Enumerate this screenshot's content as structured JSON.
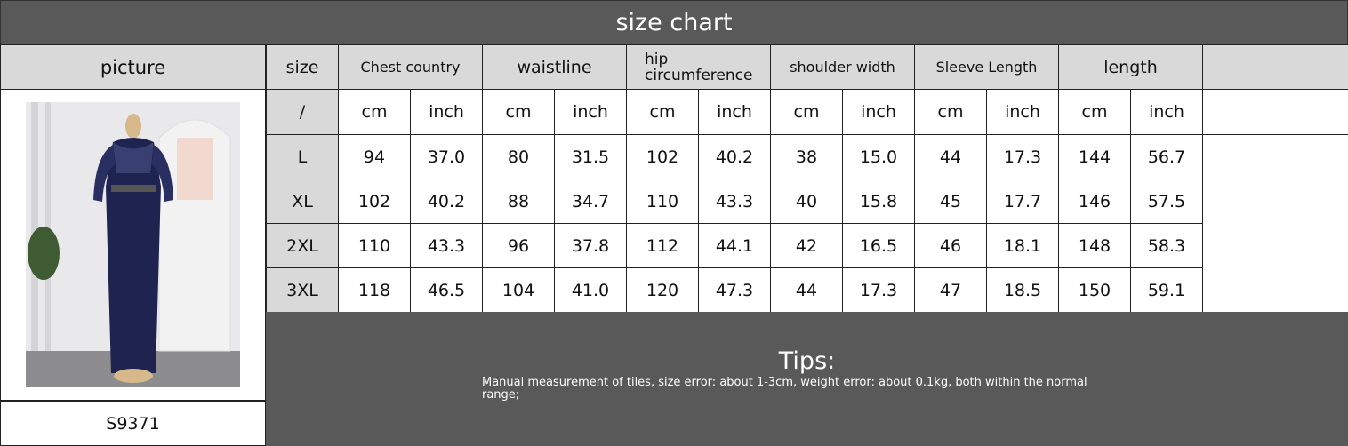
{
  "title": "size chart",
  "picture_header": "picture",
  "model_code": "S9371",
  "headers": [
    "size",
    "Chest country",
    "waistline",
    "hip circumference",
    "shoulder width",
    "Sleeve Length",
    "length"
  ],
  "unit_row": {
    "size": "/",
    "units": [
      "cm",
      "inch"
    ]
  },
  "rows": [
    {
      "size": "L",
      "values": [
        "94",
        "37.0",
        "80",
        "31.5",
        "102",
        "40.2",
        "38",
        "15.0",
        "44",
        "17.3",
        "144",
        "56.7"
      ]
    },
    {
      "size": "XL",
      "values": [
        "102",
        "40.2",
        "88",
        "34.7",
        "110",
        "43.3",
        "40",
        "15.8",
        "45",
        "17.7",
        "146",
        "57.5"
      ]
    },
    {
      "size": "2XL",
      "values": [
        "110",
        "43.3",
        "96",
        "37.8",
        "112",
        "44.1",
        "42",
        "16.5",
        "46",
        "18.1",
        "148",
        "58.3"
      ]
    },
    {
      "size": "3XL",
      "values": [
        "118",
        "46.5",
        "104",
        "41.0",
        "120",
        "47.3",
        "44",
        "17.3",
        "47",
        "18.5",
        "150",
        "59.1"
      ]
    }
  ],
  "tips": {
    "title": "Tips:",
    "text": "Manual measurement of tiles, size error: about 1-3cm, weight error: about 0.1kg, both within the normal range;"
  },
  "colors": {
    "header_dark": "#595959",
    "header_light": "#d9d9d9",
    "dress": "#1f2350"
  }
}
